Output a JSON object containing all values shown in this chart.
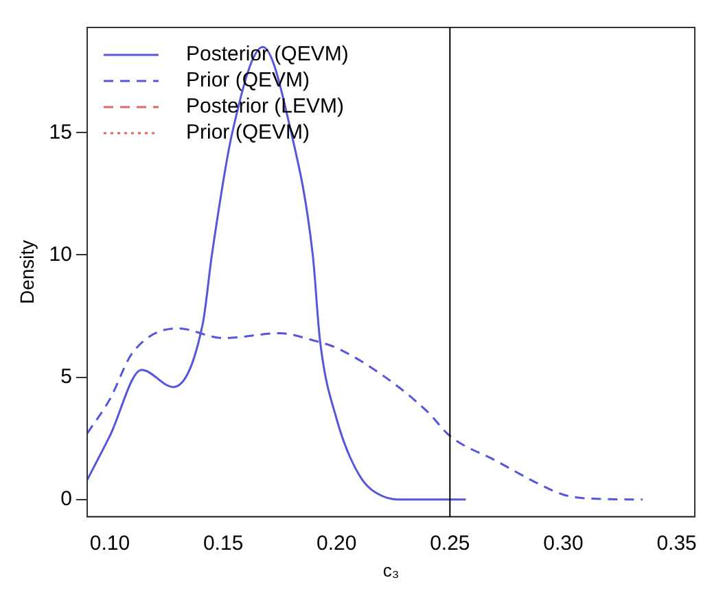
{
  "chart_data": {
    "type": "line",
    "xlabel": "c₃",
    "ylabel": "Density",
    "xlim": [
      0.09,
      0.358
    ],
    "ylim": [
      -0.7,
      19.3
    ],
    "xticks": [
      {
        "value": 0.1,
        "label": "0.10"
      },
      {
        "value": 0.15,
        "label": "0.15"
      },
      {
        "value": 0.2,
        "label": "0.20"
      },
      {
        "value": 0.25,
        "label": "0.25"
      },
      {
        "value": 0.3,
        "label": "0.30"
      },
      {
        "value": 0.35,
        "label": "0.35"
      }
    ],
    "yticks": [
      0,
      5,
      10,
      15
    ],
    "grid": false,
    "legend": "top left",
    "marker": "none",
    "ref_lines": [
      {
        "axis": "x",
        "value": 0.25,
        "color": "#000000"
      }
    ],
    "series": [
      {
        "name": "Posterior (QEVM)",
        "color": "#5555dd",
        "line_style": "solid",
        "x": [
          0.09,
          0.1,
          0.114,
          0.128,
          0.141,
          0.145,
          0.154,
          0.1675,
          0.18,
          0.1895,
          0.1927,
          0.2,
          0.21,
          0.22,
          0.23,
          0.257
        ],
        "values": [
          0.8,
          2.6,
          5.3,
          4.6,
          7.2,
          10,
          15,
          18.5,
          15,
          10,
          6.5,
          3.3,
          1,
          0.15,
          0,
          0
        ]
      },
      {
        "name": "Prior (QEVM)",
        "color": "#5555dd",
        "line_style": "dashed",
        "x": [
          0.09,
          0.1,
          0.11,
          0.13,
          0.15,
          0.175,
          0.19,
          0.2,
          0.22,
          0.24,
          0.25,
          0.27,
          0.29,
          0.3,
          0.31,
          0.335
        ],
        "values": [
          2.7,
          4.1,
          6,
          7,
          6.6,
          6.8,
          6.5,
          6.2,
          5.1,
          3.6,
          2.6,
          1.6,
          0.6,
          0.2,
          0.05,
          0
        ]
      },
      {
        "name": "Posterior (LEVM)",
        "color": "#dd6666",
        "line_style": "dashed"
      },
      {
        "name": "Prior (QEVM)",
        "color": "#dd6666",
        "line_style": "dotted"
      }
    ]
  }
}
